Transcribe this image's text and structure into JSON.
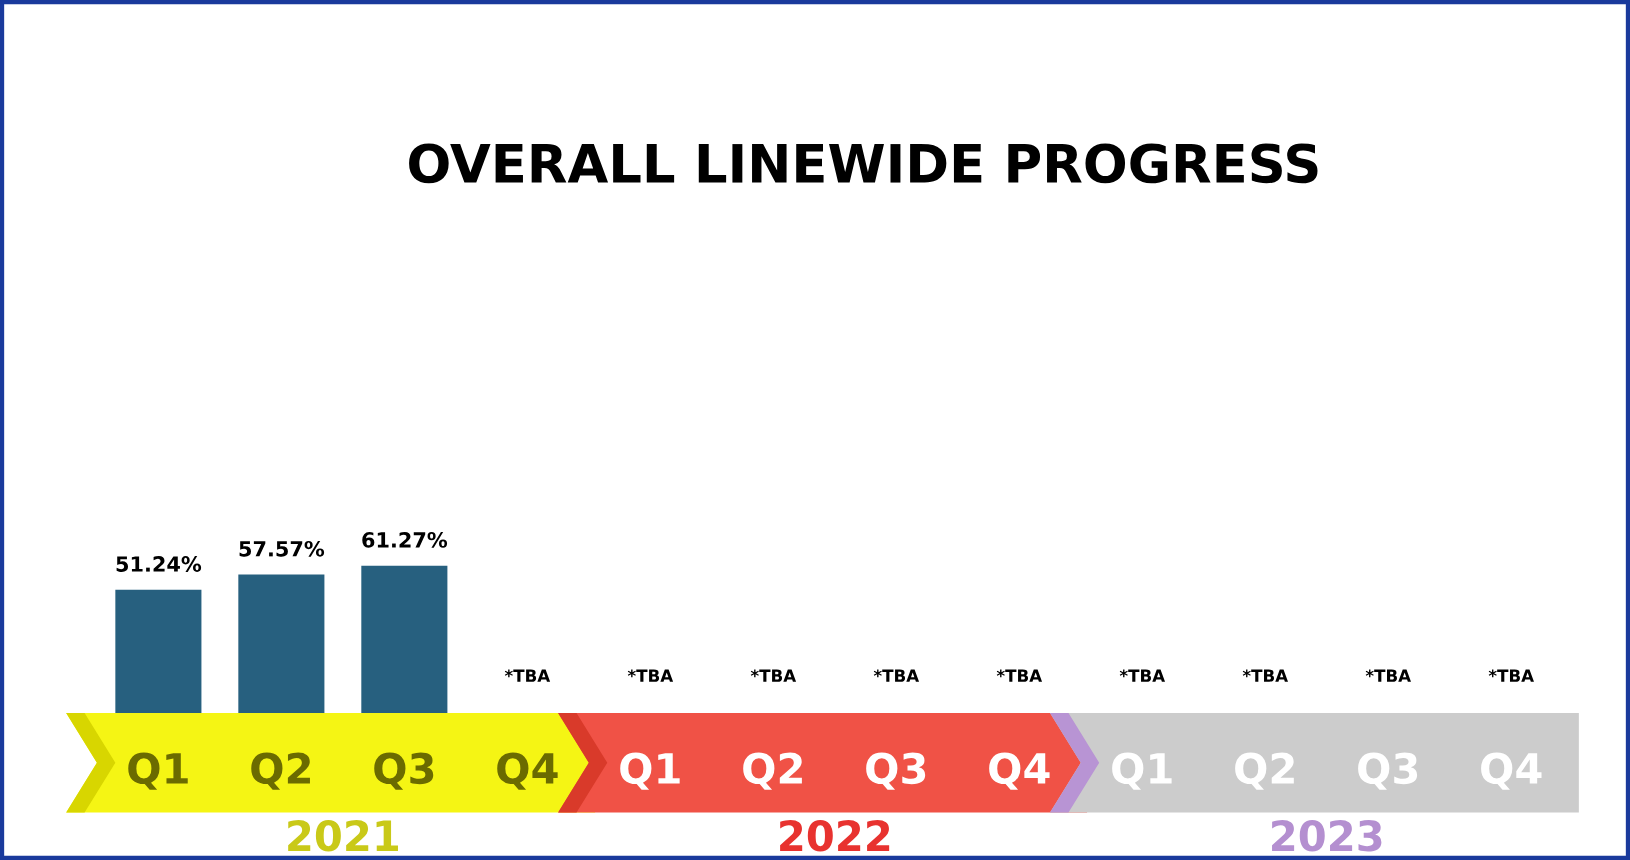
{
  "chart_data": {
    "type": "bar",
    "title": "OVERALL LINEWIDE PROGRESS",
    "categories": [
      "Q1",
      "Q2",
      "Q3",
      "Q4",
      "Q1",
      "Q2",
      "Q3",
      "Q4",
      "Q1",
      "Q2",
      "Q3",
      "Q4"
    ],
    "values": [
      51.24,
      57.57,
      61.27,
      null,
      null,
      null,
      null,
      null,
      null,
      null,
      null,
      null
    ],
    "value_labels": [
      "51.24%",
      "57.57%",
      "61.27%",
      "*TBA",
      "*TBA",
      "*TBA",
      "*TBA",
      "*TBA",
      "*TBA",
      "*TBA",
      "*TBA",
      "*TBA"
    ],
    "color": "#27607f",
    "annotations": [
      "2021",
      "2022",
      "2023"
    ]
  }
}
